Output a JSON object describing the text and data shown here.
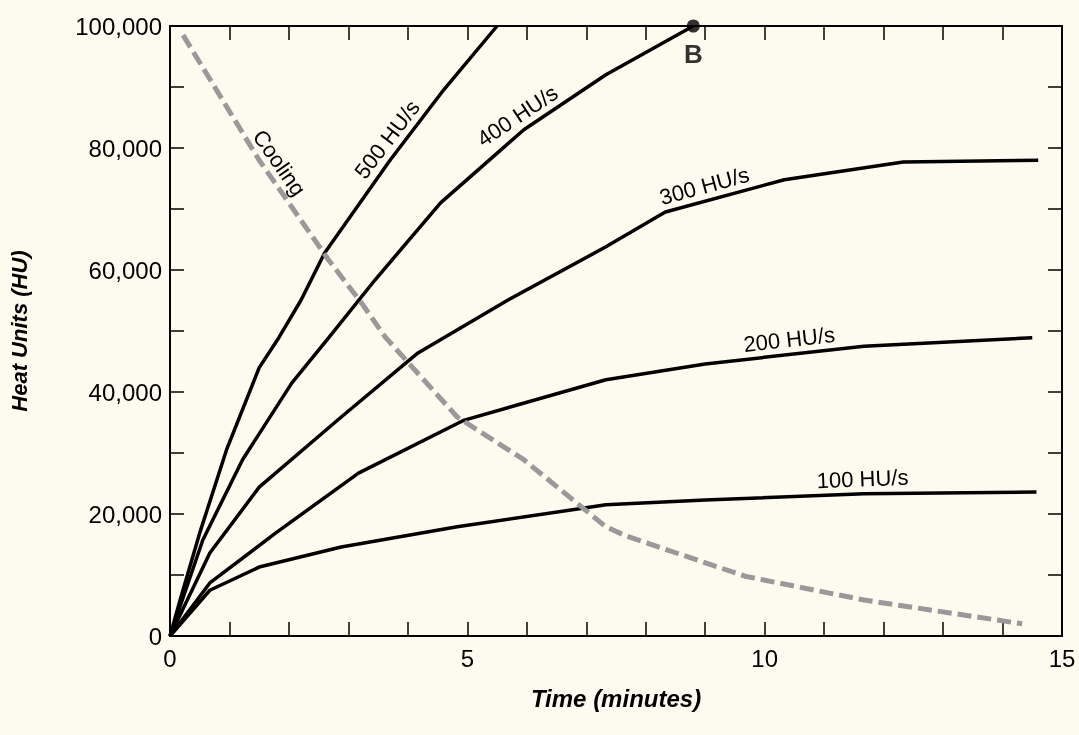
{
  "chart_data": {
    "type": "line",
    "xlabel": "Time (minutes)",
    "ylabel": "Heat Units (HU)",
    "xlim": [
      0,
      15
    ],
    "xticks": [
      0,
      {
        "value": 1,
        "label": null
      },
      {
        "value": 2,
        "label": null
      },
      {
        "value": 3,
        "label": null
      },
      {
        "value": 4,
        "label": null
      },
      5,
      {
        "value": 6,
        "label": null
      },
      {
        "value": 7,
        "label": null
      },
      {
        "value": 8,
        "label": null
      },
      {
        "value": 9,
        "label": null
      },
      10,
      {
        "value": 11,
        "label": null
      },
      {
        "value": 12,
        "label": null
      },
      {
        "value": 13,
        "label": null
      },
      {
        "value": 14,
        "label": null
      },
      15
    ],
    "ylim": [
      0,
      100000
    ],
    "yticks": [
      {
        "value": 0,
        "label": "0"
      },
      {
        "value": 10000,
        "label": null
      },
      {
        "value": 20000,
        "label": "20,000"
      },
      {
        "value": 30000,
        "label": null
      },
      {
        "value": 40000,
        "label": "40,000"
      },
      {
        "value": 50000,
        "label": null
      },
      {
        "value": 60000,
        "label": "60,000"
      },
      {
        "value": 70000,
        "label": null
      },
      {
        "value": 80000,
        "label": "80,000"
      },
      {
        "value": 90000,
        "label": null
      },
      {
        "value": 100000,
        "label": "100,000"
      }
    ],
    "grid": false,
    "legend": false,
    "marker": "none",
    "line_style": "solid",
    "series": [
      {
        "name": "500 HU/s",
        "color": "#000000",
        "x": [
          0,
          0.17,
          0.5,
          0.95,
          1.5,
          1.83,
          2.2,
          2.6,
          3.7,
          4.6,
          5.5
        ],
        "values": [
          0,
          5900,
          16900,
          30500,
          44000,
          48900,
          55000,
          62800,
          78000,
          89500,
          100000
        ]
      },
      {
        "name": "400 HU/s",
        "color": "#000000",
        "x": [
          0,
          0.55,
          1.22,
          2.05,
          2.67,
          3.45,
          4.55,
          5.95,
          7.33,
          8.8
        ],
        "values": [
          0,
          15700,
          28900,
          41500,
          48900,
          58400,
          71000,
          83000,
          92000,
          100000
        ]
      },
      {
        "name": "300 HU/s",
        "color": "#000000",
        "x": [
          0,
          0.67,
          1.5,
          2.88,
          4.17,
          5.67,
          7.33,
          8.33,
          10.33,
          12.33,
          14.6
        ],
        "values": [
          0,
          13600,
          24400,
          35900,
          46400,
          55000,
          63800,
          69500,
          74800,
          77700,
          78000
        ]
      },
      {
        "name": "200 HU/s",
        "color": "#000000",
        "x": [
          0,
          0.67,
          1.78,
          3.17,
          4.95,
          7.33,
          9,
          11.67,
          14.5
        ],
        "values": [
          0,
          8700,
          16900,
          26700,
          35400,
          42000,
          44600,
          47500,
          48900
        ]
      },
      {
        "name": "100 HU/s",
        "color": "#000000",
        "x": [
          0,
          0.67,
          1.5,
          2.88,
          4.83,
          7.33,
          9,
          11.67,
          14.57
        ],
        "values": [
          0,
          7500,
          11300,
          14600,
          17900,
          21500,
          22300,
          23300,
          23600
        ]
      },
      {
        "name": "Cooling",
        "color": "#999999",
        "line_style": "dashed",
        "x": [
          0.22,
          1.5,
          2.67,
          3.22,
          3.62,
          4.83,
          5.95,
          7.33,
          7.67,
          9.67,
          11.67,
          14.33
        ],
        "values": [
          98500,
          78000,
          61600,
          54600,
          49000,
          35900,
          28900,
          17900,
          16400,
          9800,
          5900,
          2000
        ]
      }
    ],
    "annotations": [
      {
        "text": "B",
        "x": 8.8,
        "y": 100000
      }
    ]
  }
}
